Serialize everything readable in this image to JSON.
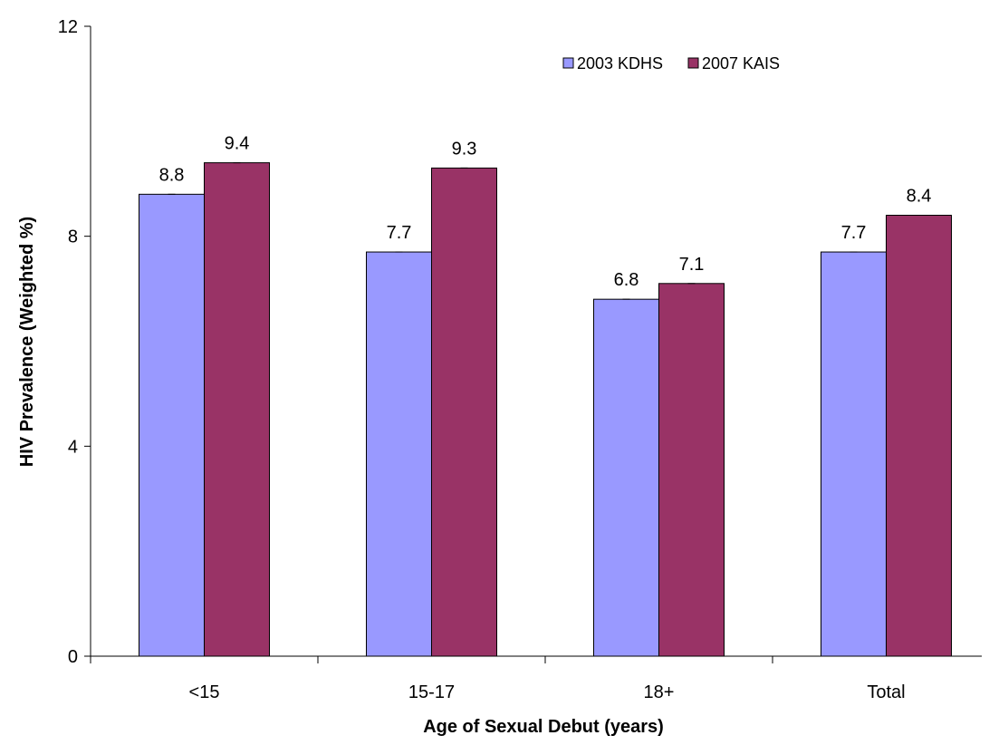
{
  "chart_data": {
    "type": "bar",
    "title": "",
    "xlabel": "Age of Sexual Debut (years)",
    "ylabel": "HIV Prevalence (Weighted %)",
    "categories": [
      "<15",
      "15-17",
      "18+",
      "Total"
    ],
    "series": [
      {
        "name": "2003 KDHS",
        "values": [
          8.8,
          7.7,
          6.8,
          7.7
        ],
        "labels": [
          "8.8",
          "7.7",
          "6.8",
          "7.7"
        ],
        "color": "#9999ff"
      },
      {
        "name": "2007 KAIS",
        "values": [
          9.4,
          9.3,
          7.1,
          8.4
        ],
        "labels": [
          "9.4",
          "9.3",
          "7.1",
          "8.4"
        ],
        "color": "#993366"
      }
    ],
    "ylim": [
      0,
      12
    ],
    "yticks": [
      0,
      4,
      8,
      12
    ],
    "ytick_labels": [
      "0",
      "4",
      "8",
      "12"
    ],
    "grid": false,
    "legend_position": "top-right",
    "error_bars": true
  }
}
